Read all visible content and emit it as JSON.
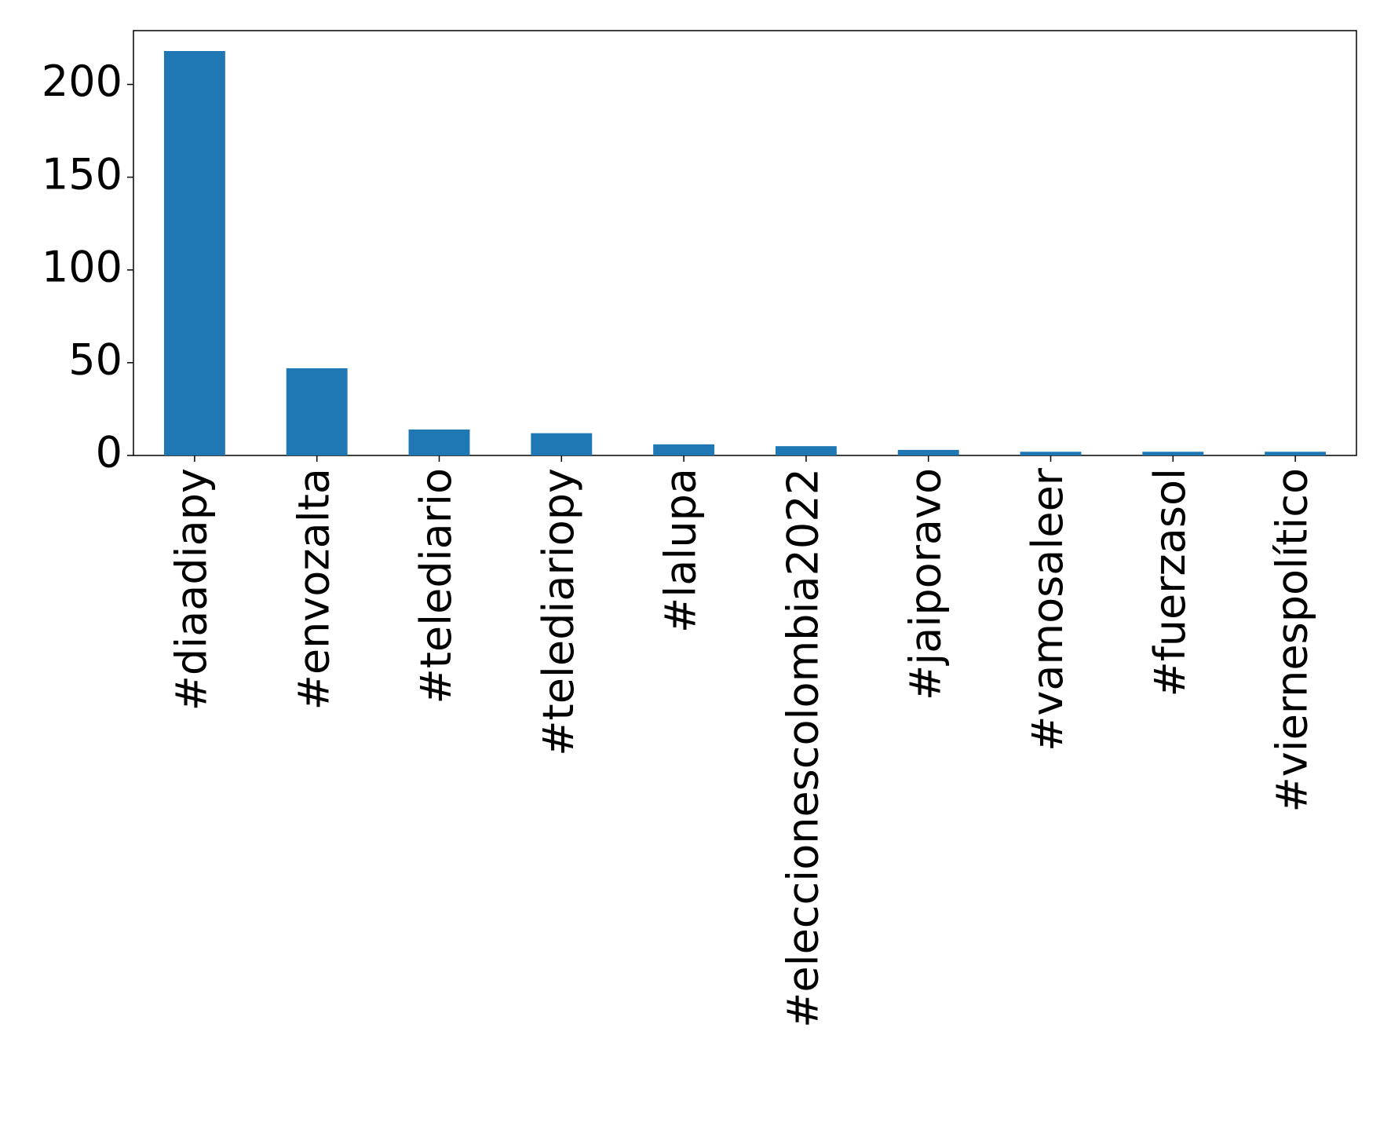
{
  "chart_data": {
    "type": "bar",
    "categories": [
      "#diaadiapy",
      "#envozalta",
      "#telediario",
      "#telediariopy",
      "#lalupa",
      "#eleccionescolombia2022",
      "#jaiporavo",
      "#vamosaleer",
      "#fuerzasol",
      "#viernespolítico"
    ],
    "values": [
      218,
      47,
      14,
      12,
      6,
      5,
      3,
      2,
      2,
      2
    ],
    "color": "#1f77b4",
    "ylim": [
      0,
      229
    ],
    "yticks": [
      0,
      50,
      100,
      150,
      200
    ],
    "grid": false
  }
}
